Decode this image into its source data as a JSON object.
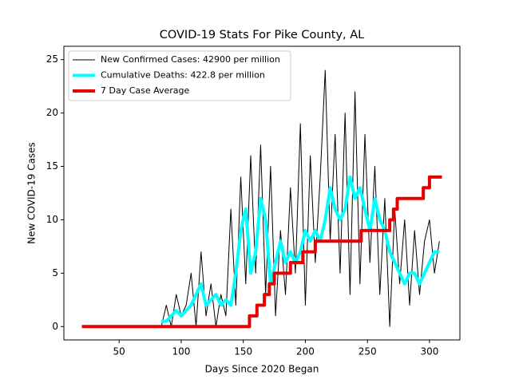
{
  "chart_data": {
    "type": "line",
    "title": "COVID-19 Stats For Pike County, AL",
    "x_label": "Days Since 2020 Began",
    "y_label": "New COVID-19 Cases",
    "xlim": [
      5.5,
      324.5
    ],
    "ylim": [
      -1.25,
      26.25
    ],
    "xticks": [
      50,
      100,
      150,
      200,
      250,
      300
    ],
    "yticks": [
      0,
      5,
      10,
      15,
      20,
      25
    ],
    "legend": "upper left",
    "series": [
      {
        "name": "New Confirmed Cases: 42900 per million",
        "color": "#000000",
        "width": 1,
        "x": [
          84,
          88,
          92,
          96,
          100,
          104,
          108,
          112,
          116,
          120,
          124,
          128,
          132,
          136,
          140,
          144,
          148,
          152,
          156,
          160,
          164,
          168,
          172,
          176,
          180,
          184,
          188,
          192,
          196,
          200,
          204,
          208,
          212,
          216,
          220,
          224,
          228,
          232,
          236,
          240,
          244,
          248,
          252,
          256,
          260,
          264,
          268,
          272,
          276,
          280,
          284,
          288,
          292,
          296,
          300,
          304,
          308
        ],
        "values": [
          0,
          2,
          0,
          3,
          1,
          2,
          5,
          0,
          7,
          1,
          4,
          0,
          3,
          1,
          11,
          2,
          14,
          4,
          16,
          5,
          17,
          3,
          15,
          1,
          9,
          3,
          13,
          5,
          19,
          2,
          16,
          6,
          14,
          24,
          8,
          18,
          5,
          20,
          3,
          22,
          4,
          18,
          6,
          15,
          3,
          12,
          0,
          11,
          4,
          10,
          2,
          9,
          3,
          8,
          10,
          5,
          8
        ]
      },
      {
        "name": "Cumulative Deaths: 422.8 per million",
        "color": "#00ffff",
        "width": 4,
        "x": [
          84,
          88,
          92,
          96,
          100,
          104,
          108,
          112,
          116,
          120,
          124,
          128,
          132,
          136,
          140,
          144,
          148,
          152,
          156,
          160,
          164,
          168,
          172,
          176,
          180,
          184,
          188,
          192,
          196,
          200,
          204,
          208,
          212,
          216,
          220,
          224,
          228,
          232,
          236,
          240,
          244,
          248,
          252,
          256,
          260,
          264,
          268,
          272,
          276,
          280,
          284,
          288,
          292,
          296,
          300,
          304,
          308
        ],
        "values": [
          0.5,
          0.5,
          1,
          1.5,
          1,
          1.5,
          2,
          3,
          4,
          2,
          2.5,
          3,
          2,
          2.5,
          2,
          5,
          9,
          11,
          5,
          7,
          12,
          10,
          4,
          6,
          8,
          6,
          7,
          6,
          7,
          9,
          8,
          9,
          8,
          10,
          13,
          11,
          10,
          11,
          14,
          12,
          13,
          11,
          9,
          12,
          10,
          9,
          7,
          6,
          5,
          4,
          5,
          5,
          4,
          5,
          6,
          7,
          7
        ]
      },
      {
        "name": "7 Day Case Average",
        "color": "#e80000",
        "width": 4,
        "x": [
          20,
          155,
          155,
          161,
          161,
          167,
          167,
          171,
          171,
          175,
          175,
          188,
          188,
          198,
          198,
          208,
          208,
          245,
          245,
          268,
          268,
          271,
          271,
          274,
          274,
          295,
          295,
          300,
          300,
          310
        ],
        "values": [
          0,
          0,
          1,
          1,
          2,
          2,
          3,
          3,
          4,
          4,
          5,
          5,
          6,
          6,
          7,
          7,
          8,
          8,
          9,
          9,
          10,
          10,
          11,
          11,
          12,
          12,
          13,
          13,
          14,
          14
        ]
      }
    ]
  }
}
